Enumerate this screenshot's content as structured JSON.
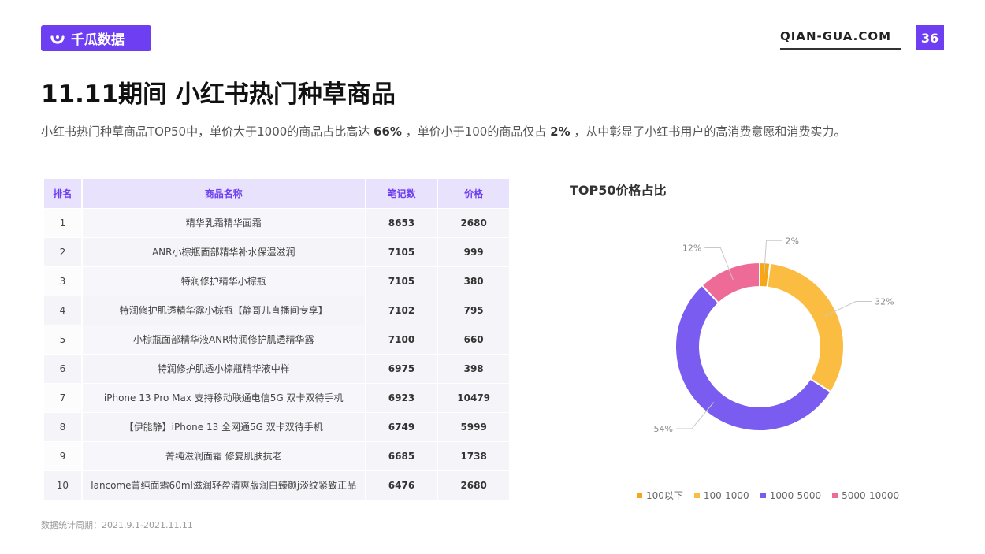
{
  "header": {
    "brand": "千瓜数据",
    "site": "QIAN-GUA.COM",
    "page_number": "36"
  },
  "title": "11.11期间 小红书热门种草商品",
  "description": {
    "part1": "小红书热门种草商品TOP50中，单价大于1000的商品占比高达 ",
    "value1": "66%",
    "part2": " ，单价小于100的商品仅占 ",
    "value2": "2%",
    "part3": " ，从中彰显了小红书用户的高消费意愿和消费实力。"
  },
  "table": {
    "headers": [
      "排名",
      "商品名称",
      "笔记数",
      "价格"
    ],
    "rows": [
      [
        "1",
        "精华乳霜精华面霜",
        "8653",
        "2680"
      ],
      [
        "2",
        "ANR小棕瓶面部精华补水保湿滋润",
        "7105",
        "999"
      ],
      [
        "3",
        "特润修护精华小棕瓶",
        "7105",
        "380"
      ],
      [
        "4",
        "特润修护肌透精华露小棕瓶【静哥儿直播间专享】",
        "7102",
        "795"
      ],
      [
        "5",
        "小棕瓶面部精华液ANR特润修护肌透精华露",
        "7100",
        "660"
      ],
      [
        "6",
        "特润修护肌透小棕瓶精华液中样",
        "6975",
        "398"
      ],
      [
        "7",
        "iPhone 13 Pro Max 支持移动联通电信5G 双卡双待手机",
        "6923",
        "10479"
      ],
      [
        "8",
        "【伊能静】iPhone 13 全网通5G 双卡双待手机",
        "6749",
        "5999"
      ],
      [
        "9",
        "菁纯滋润面霜 修复肌肤抗老",
        "6685",
        "1738"
      ],
      [
        "10",
        "lancome菁纯面霜60ml滋润轻盈清爽版润白臻颜j淡纹紧致正品",
        "6476",
        "2680"
      ]
    ]
  },
  "chart_data": {
    "type": "pie",
    "title": "TOP50价格占比",
    "categories": [
      "100以下",
      "100-1000",
      "1000-5000",
      "5000-10000"
    ],
    "values": [
      2,
      32,
      54,
      12
    ],
    "labels": [
      "2%",
      "32%",
      "54%",
      "12%"
    ],
    "colors": [
      "#f5a716",
      "#fbbd41",
      "#7b5cf0",
      "#ee6b97"
    ],
    "legend": "bottom"
  },
  "footnote": "数据统计周期：2021.9.1-2021.11.11"
}
